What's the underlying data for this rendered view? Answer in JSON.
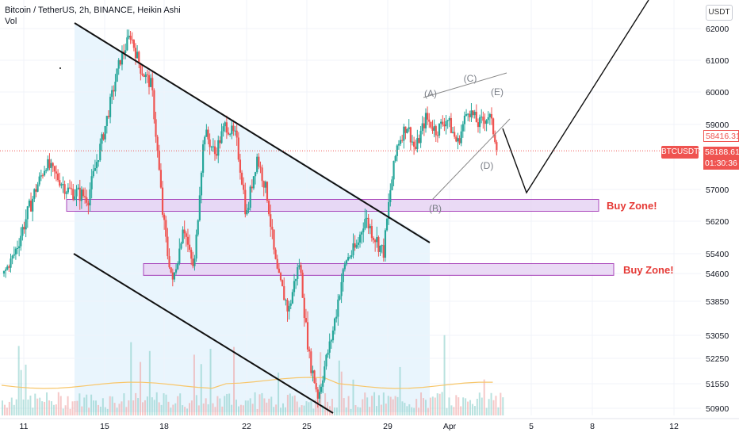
{
  "header": {
    "title": "Bitcoin / TetherUS, 2h, BINANCE, Heikin Ashi",
    "volume_label": "Vol",
    "unit": "USDT"
  },
  "chart_data": {
    "type": "candlestick",
    "symbol_tag": "BTCUSDT",
    "price_axis": {
      "ticks": [
        62000,
        61000,
        60000,
        59000,
        57000,
        56200,
        55400,
        54600,
        53850,
        53050,
        52250,
        51550,
        50900
      ],
      "range": [
        50750,
        62700
      ]
    },
    "time_axis": {
      "tick_labels": [
        "11",
        "15",
        "18",
        "22",
        "25",
        "29",
        "Apr",
        "5",
        "8",
        "12"
      ]
    },
    "price_tags": [
      {
        "value": "58416.31",
        "style": "outline"
      },
      {
        "value": "58188.61",
        "style": "filled"
      },
      {
        "value": "01:30:36",
        "style": "filled"
      }
    ],
    "current_price": 58188.61,
    "price_path": [
      {
        "t": 0,
        "p": 54600
      },
      {
        "t": 2,
        "p": 56200
      },
      {
        "t": 4,
        "p": 57800
      },
      {
        "t": 6,
        "p": 57000
      },
      {
        "t": 8,
        "p": 56800
      },
      {
        "t": 9.5,
        "p": 58800
      },
      {
        "t": 11,
        "p": 61000
      },
      {
        "t": 12,
        "p": 61800
      },
      {
        "t": 13,
        "p": 60700
      },
      {
        "t": 14,
        "p": 60200
      },
      {
        "t": 15,
        "p": 56500
      },
      {
        "t": 16,
        "p": 54300
      },
      {
        "t": 17,
        "p": 56200
      },
      {
        "t": 18,
        "p": 54800
      },
      {
        "t": 19,
        "p": 58800
      },
      {
        "t": 20,
        "p": 58100
      },
      {
        "t": 21,
        "p": 59000
      },
      {
        "t": 22,
        "p": 58600
      },
      {
        "t": 23,
        "p": 56300
      },
      {
        "t": 24,
        "p": 58000
      },
      {
        "t": 25,
        "p": 56800
      },
      {
        "t": 26,
        "p": 54500
      },
      {
        "t": 27,
        "p": 53600
      },
      {
        "t": 28,
        "p": 55000
      },
      {
        "t": 29,
        "p": 52200
      },
      {
        "t": 29.8,
        "p": 51200
      },
      {
        "t": 30.6,
        "p": 52300
      },
      {
        "t": 31.5,
        "p": 53600
      },
      {
        "t": 32.5,
        "p": 55200
      },
      {
        "t": 33.5,
        "p": 55600
      },
      {
        "t": 34.2,
        "p": 56300
      },
      {
        "t": 35,
        "p": 55900
      },
      {
        "t": 36,
        "p": 55400
      },
      {
        "t": 36.6,
        "p": 56900
      },
      {
        "t": 37.3,
        "p": 58400
      },
      {
        "t": 38.2,
        "p": 59000
      },
      {
        "t": 39,
        "p": 58200
      },
      {
        "t": 40,
        "p": 59200
      },
      {
        "t": 41,
        "p": 58800
      },
      {
        "t": 42,
        "p": 59200
      },
      {
        "t": 43,
        "p": 58400
      },
      {
        "t": 44,
        "p": 59500
      },
      {
        "t": 45,
        "p": 59000
      },
      {
        "t": 46,
        "p": 59300
      },
      {
        "t": 46.8,
        "p": 58300
      }
    ],
    "zones": [
      {
        "label": "Buy Zone!",
        "top": 56750,
        "bottom": 56450
      },
      {
        "label": "Buy Zone!",
        "top": 55000,
        "bottom": 54550
      }
    ],
    "wave_labels": [
      "(A)",
      "(B)",
      "(C)",
      "(D)",
      "(E)"
    ],
    "colors": {
      "up": "#26a69a",
      "down": "#ef5350",
      "zone_fill": "#e7d4f4",
      "zone_stroke": "#9c27b0",
      "channel_fill": "#e3f2fd",
      "zone_label": "#e53935",
      "ma": "#f7c66a"
    }
  }
}
